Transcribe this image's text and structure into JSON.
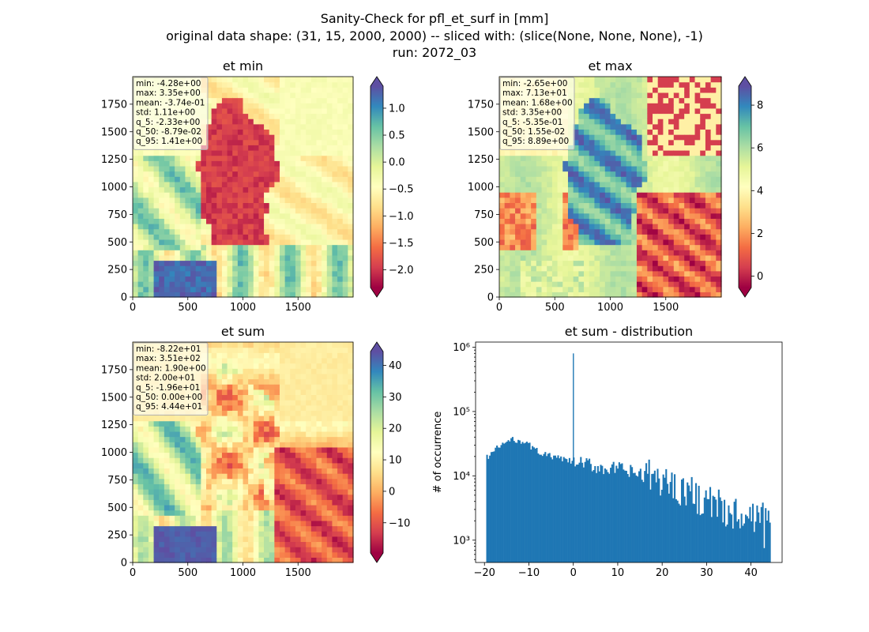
{
  "figure": {
    "suptitle_lines": [
      "Sanity-Check for pfl_et_surf in [mm]",
      "original data shape: (31, 15, 2000, 2000) -- sliced with: (slice(None, None, None), -1)",
      "run: 2072_03"
    ]
  },
  "chart_data": [
    {
      "type": "heatmap",
      "title": "et min",
      "colormap": "Spectral",
      "extend": "both",
      "xlim": [
        0,
        2000
      ],
      "ylim": [
        0,
        2000
      ],
      "xticks": [
        "0",
        "500",
        "1000",
        "1500"
      ],
      "yticks": [
        "0",
        "250",
        "500",
        "750",
        "1000",
        "1250",
        "1500",
        "1750"
      ],
      "clim": [
        -2.33,
        1.41
      ],
      "colorbar_ticks": [
        "1.0",
        "0.5",
        "0.0",
        "−0.5",
        "−1.0",
        "−1.5",
        "−2.0"
      ],
      "stats": [
        "min: -4.28e+00",
        "max: 3.35e+00",
        "mean: -3.74e-01",
        "std: 1.11e+00",
        "q_5: -2.33e+00",
        "q_50: -8.79e-02",
        "q_95: 1.41e+00"
      ]
    },
    {
      "type": "heatmap",
      "title": "et max",
      "colormap": "Spectral",
      "extend": "both",
      "xlim": [
        0,
        2000
      ],
      "ylim": [
        0,
        2000
      ],
      "xticks": [
        "0",
        "500",
        "1000",
        "1500"
      ],
      "yticks": [
        "0",
        "250",
        "500",
        "750",
        "1000",
        "1250",
        "1500",
        "1750"
      ],
      "clim": [
        -0.535,
        8.89
      ],
      "colorbar_ticks": [
        "8",
        "6",
        "4",
        "2",
        "0"
      ],
      "stats": [
        "min: -2.65e+00",
        "max: 7.13e+01",
        "mean: 1.68e+00",
        "std: 3.35e+00",
        "q_5: -5.35e-01",
        "q_50: 1.55e-02",
        "q_95: 8.89e+00"
      ]
    },
    {
      "type": "heatmap",
      "title": "et sum",
      "colormap": "Spectral",
      "extend": "both",
      "xlim": [
        0,
        2000
      ],
      "ylim": [
        0,
        2000
      ],
      "xticks": [
        "0",
        "500",
        "1000",
        "1500"
      ],
      "yticks": [
        "0",
        "250",
        "500",
        "750",
        "1000",
        "1250",
        "1500",
        "1750"
      ],
      "clim": [
        -19.6,
        44.4
      ],
      "colorbar_ticks": [
        "40",
        "30",
        "20",
        "10",
        "0",
        "−10"
      ],
      "stats": [
        "min: -8.22e+01",
        "max: 3.51e+02",
        "mean: 1.90e+00",
        "std: 2.00e+01",
        "q_5: -1.96e+01",
        "q_50: 0.00e+00",
        "q_95: 4.44e+01"
      ]
    },
    {
      "type": "bar",
      "subtype": "histogram",
      "title": "et sum - distribution",
      "ylabel": "# of occurrence",
      "yscale": "log",
      "xlim": [
        -22,
        47
      ],
      "ylim": [
        450,
        1200000
      ],
      "xticks": [
        "−20",
        "−10",
        "0",
        "10",
        "20",
        "30",
        "40"
      ],
      "yticks": [
        "10³",
        "10⁴",
        "10⁵",
        "10⁶"
      ],
      "color": "#1f77b4",
      "bin_range": [
        -19.6,
        44.4
      ],
      "bin_width": 0.32,
      "spike": {
        "x": 0,
        "count": 800000
      },
      "envelope": [
        [
          -19.6,
          19000
        ],
        [
          -18,
          24000
        ],
        [
          -16,
          31000
        ],
        [
          -14,
          36000
        ],
        [
          -12,
          36000
        ],
        [
          -10,
          30000
        ],
        [
          -8,
          24000
        ],
        [
          -6,
          21000
        ],
        [
          -4,
          19000
        ],
        [
          -2,
          18000
        ],
        [
          0,
          16000
        ],
        [
          5,
          14000
        ],
        [
          10,
          12500
        ],
        [
          15,
          10500
        ],
        [
          20,
          8500
        ],
        [
          25,
          6000
        ],
        [
          30,
          4000
        ],
        [
          35,
          2800
        ],
        [
          40,
          2500
        ],
        [
          44.4,
          2500
        ]
      ]
    }
  ]
}
